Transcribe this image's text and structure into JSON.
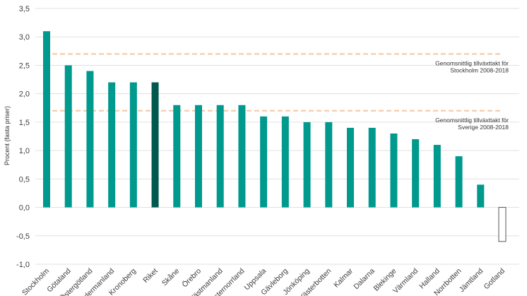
{
  "chart_data": {
    "type": "bar",
    "title": "",
    "xlabel": "",
    "ylabel": "Procent (fasta priser)",
    "ylim": [
      -1.0,
      3.5
    ],
    "yticks": [
      "-1,0",
      "-0,5",
      "0,0",
      "0,5",
      "1,0",
      "1,5",
      "2,0",
      "2,5",
      "3,0",
      "3,5"
    ],
    "grid": true,
    "categories": [
      "Stockholm",
      "Götaland",
      "Östergötland",
      "Södermanland",
      "Kronoberg",
      "Riket",
      "Skåne",
      "Örebro",
      "Västmanland",
      "Västernorrland",
      "Uppsala",
      "Gävleborg",
      "Jönköping",
      "Västerbotten",
      "Kalmar",
      "Dalarna",
      "Blekinge",
      "Värmland",
      "Halland",
      "Norrbotten",
      "Jämtland",
      "Gotland"
    ],
    "values": [
      3.1,
      2.5,
      2.4,
      2.2,
      2.2,
      2.2,
      1.8,
      1.8,
      1.8,
      1.8,
      1.6,
      1.6,
      1.5,
      1.5,
      1.4,
      1.4,
      1.3,
      1.2,
      1.1,
      0.9,
      0.4,
      -0.6
    ],
    "bar_style": [
      "teal",
      "teal",
      "teal",
      "teal",
      "teal",
      "dark",
      "teal",
      "teal",
      "teal",
      "teal",
      "teal",
      "teal",
      "teal",
      "teal",
      "teal",
      "teal",
      "teal",
      "teal",
      "teal",
      "teal",
      "teal",
      "outline"
    ],
    "colors": {
      "teal": "#00998e",
      "dark": "#00584f",
      "outline": "#ffffff",
      "outline_stroke": "#555555",
      "refline": "#f4c7a2",
      "grid": "#e0e0e0"
    },
    "reference_lines": [
      {
        "value": 2.7,
        "label_lines": [
          "Genomsnittlig tillväxttakt för",
          "Stockholm 2008-2018"
        ]
      },
      {
        "value": 1.7,
        "label_lines": [
          "Genomsnittlig tillväxttakt för",
          "Sverige 2008-2018"
        ]
      }
    ]
  }
}
